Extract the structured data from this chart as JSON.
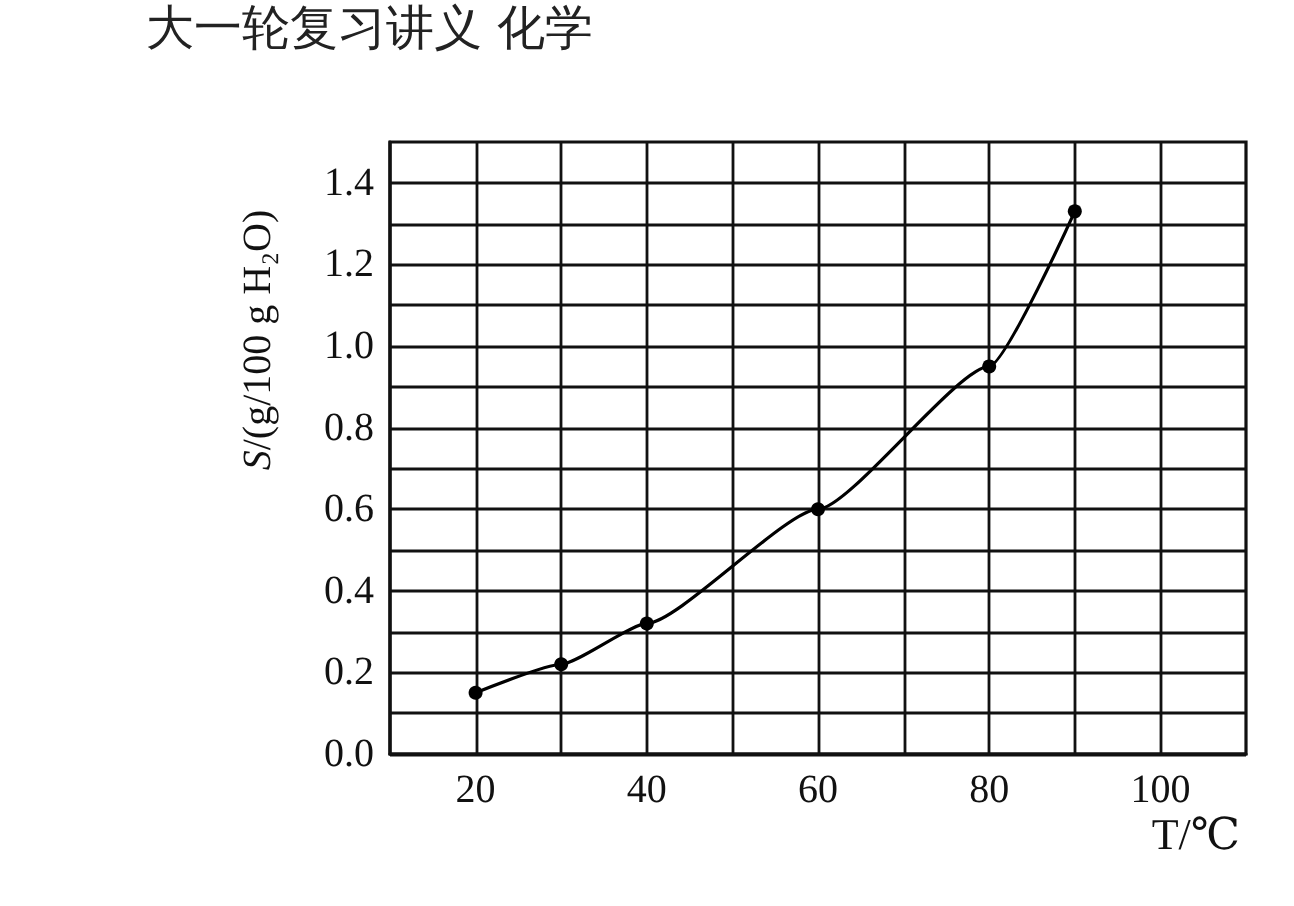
{
  "chart_data": {
    "type": "line",
    "annotations": [
      "大一轮复习讲义 化学"
    ],
    "xlabel": "T/℃",
    "ylabel": "S/(g/100 g H₂O)",
    "x": [
      20,
      30,
      40,
      60,
      80,
      90
    ],
    "values": [
      0.15,
      0.22,
      0.32,
      0.6,
      0.95,
      1.33
    ],
    "color": "#000000",
    "xlim": [
      10,
      110
    ],
    "xticks": [
      20,
      {
        "value": 30,
        "label": null
      },
      40,
      {
        "value": 50,
        "label": null
      },
      60,
      {
        "value": 70,
        "label": null
      },
      80,
      {
        "value": 90,
        "label": null
      },
      100
    ],
    "ylim": [
      0,
      1.5
    ],
    "yticks": [
      {
        "value": 0,
        "label": "0.0"
      },
      {
        "value": 0.1,
        "label": null
      },
      0.2,
      {
        "value": 0.3,
        "label": null
      },
      0.4,
      {
        "value": 0.5,
        "label": null
      },
      0.6,
      {
        "value": 0.7,
        "label": null
      },
      0.8,
      {
        "value": 0.9,
        "label": null
      },
      {
        "value": 1,
        "label": "1.0"
      },
      {
        "value": 1.1,
        "label": null
      },
      1.2,
      {
        "value": 1.3,
        "label": null
      },
      1.4
    ],
    "grid": true,
    "marker": "circle",
    "line_style": "solid"
  }
}
